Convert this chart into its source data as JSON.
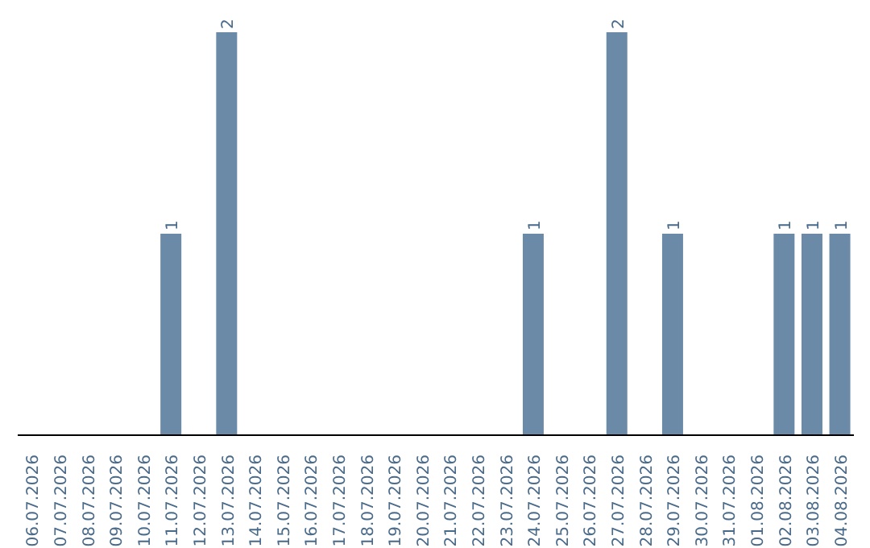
{
  "chart_data": {
    "type": "bar",
    "categories": [
      "06.07.2026",
      "07.07.2026",
      "08.07.2026",
      "09.07.2026",
      "10.07.2026",
      "11.07.2026",
      "12.07.2026",
      "13.07.2026",
      "14.07.2026",
      "15.07.2026",
      "16.07.2026",
      "17.07.2026",
      "18.07.2026",
      "19.07.2026",
      "20.07.2026",
      "21.07.2026",
      "22.07.2026",
      "23.07.2026",
      "24.07.2026",
      "25.07.2026",
      "26.07.2026",
      "27.07.2026",
      "28.07.2026",
      "29.07.2026",
      "30.07.2026",
      "31.07.2026",
      "01.08.2026",
      "02.08.2026",
      "03.08.2026",
      "04.08.2026"
    ],
    "values": [
      0,
      0,
      0,
      0,
      0,
      1,
      0,
      2,
      0,
      0,
      0,
      0,
      0,
      0,
      0,
      0,
      0,
      0,
      1,
      0,
      0,
      2,
      0,
      1,
      0,
      0,
      0,
      1,
      1,
      1
    ],
    "value_labels": [
      null,
      null,
      null,
      null,
      null,
      "1",
      null,
      "2",
      null,
      null,
      null,
      null,
      null,
      null,
      null,
      null,
      null,
      null,
      "1",
      null,
      null,
      "2",
      null,
      "1",
      null,
      null,
      null,
      "1",
      "1",
      "1"
    ],
    "color": "#6b8aa8",
    "grid": false,
    "legend": false
  }
}
